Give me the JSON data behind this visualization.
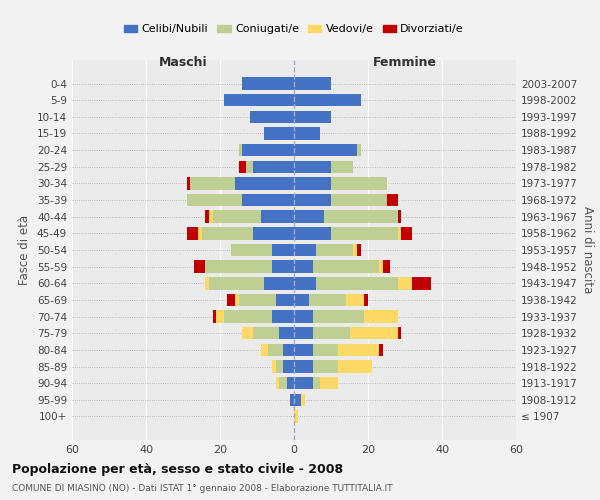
{
  "age_groups": [
    "0-4",
    "5-9",
    "10-14",
    "15-19",
    "20-24",
    "25-29",
    "30-34",
    "35-39",
    "40-44",
    "45-49",
    "50-54",
    "55-59",
    "60-64",
    "65-69",
    "70-74",
    "75-79",
    "80-84",
    "85-89",
    "90-94",
    "95-99",
    "100+"
  ],
  "birth_years": [
    "2003-2007",
    "1998-2002",
    "1993-1997",
    "1988-1992",
    "1983-1987",
    "1978-1982",
    "1973-1977",
    "1968-1972",
    "1963-1967",
    "1958-1962",
    "1953-1957",
    "1948-1952",
    "1943-1947",
    "1938-1942",
    "1933-1937",
    "1928-1932",
    "1923-1927",
    "1918-1922",
    "1913-1917",
    "1908-1912",
    "≤ 1907"
  ],
  "colors": {
    "celibi": "#4472C4",
    "coniugati": "#BFCE93",
    "vedovi": "#FFD966",
    "divorziati": "#C00000"
  },
  "maschi": {
    "celibi": [
      14,
      19,
      12,
      8,
      14,
      11,
      16,
      14,
      9,
      11,
      6,
      6,
      8,
      5,
      6,
      4,
      3,
      3,
      2,
      1,
      0
    ],
    "coniugati": [
      0,
      0,
      0,
      0,
      1,
      2,
      12,
      15,
      13,
      14,
      11,
      18,
      15,
      10,
      13,
      7,
      4,
      2,
      2,
      0,
      0
    ],
    "vedovi": [
      0,
      0,
      0,
      0,
      0,
      0,
      0,
      0,
      1,
      1,
      0,
      0,
      1,
      1,
      2,
      3,
      2,
      1,
      1,
      0,
      0
    ],
    "divorziati": [
      0,
      0,
      0,
      0,
      0,
      2,
      1,
      0,
      1,
      3,
      0,
      3,
      0,
      2,
      1,
      0,
      0,
      0,
      0,
      0,
      0
    ]
  },
  "femmine": {
    "celibi": [
      10,
      18,
      10,
      7,
      17,
      10,
      10,
      10,
      8,
      10,
      6,
      5,
      6,
      4,
      5,
      5,
      5,
      5,
      5,
      2,
      0
    ],
    "coniugati": [
      0,
      0,
      0,
      0,
      1,
      6,
      15,
      15,
      20,
      18,
      10,
      18,
      22,
      10,
      14,
      10,
      7,
      7,
      2,
      0,
      0
    ],
    "vedovi": [
      0,
      0,
      0,
      0,
      0,
      0,
      0,
      0,
      0,
      1,
      1,
      1,
      4,
      5,
      9,
      13,
      11,
      9,
      5,
      1,
      1
    ],
    "divorziati": [
      0,
      0,
      0,
      0,
      0,
      0,
      0,
      3,
      1,
      3,
      1,
      2,
      5,
      1,
      0,
      1,
      1,
      0,
      0,
      0,
      0
    ]
  },
  "xlim": 60,
  "title": "Popolazione per età, sesso e stato civile - 2008",
  "subtitle": "COMUNE DI MIASINO (NO) - Dati ISTAT 1° gennaio 2008 - Elaborazione TUTTITALIA.IT",
  "ylabel_left": "Fasce di età",
  "ylabel_right": "Anni di nascita",
  "xlabel_left": "Maschi",
  "xlabel_right": "Femmine",
  "legend_labels": [
    "Celibi/Nubili",
    "Coniugati/e",
    "Vedovi/e",
    "Divorziati/e"
  ],
  "bg_color": "#f2f2f2",
  "plot_bg": "#ebebeb"
}
